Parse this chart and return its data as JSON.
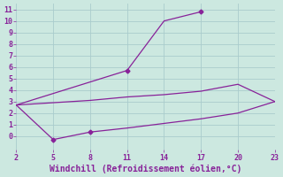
{
  "xlabel": "Windchill (Refroidissement éolien,°C)",
  "background_color": "#cce8e0",
  "grid_color": "#aacccc",
  "line_color": "#882299",
  "xlim": [
    2,
    23
  ],
  "ylim": [
    -1.2,
    11.5
  ],
  "xticks": [
    2,
    5,
    8,
    11,
    14,
    17,
    20,
    23
  ],
  "yticks": [
    0,
    1,
    2,
    3,
    4,
    5,
    6,
    7,
    8,
    9,
    10,
    11
  ],
  "line1_x": [
    2,
    11,
    14,
    17
  ],
  "line1_y": [
    2.7,
    5.7,
    10.0,
    10.8
  ],
  "line2_x": [
    2,
    5,
    8,
    11,
    14,
    17,
    20,
    23
  ],
  "line2_y": [
    2.7,
    2.9,
    3.1,
    3.4,
    3.6,
    3.9,
    4.5,
    3.0
  ],
  "line3_x": [
    2,
    5,
    8,
    11,
    14,
    17,
    20,
    23
  ],
  "line3_y": [
    2.7,
    -0.3,
    0.35,
    0.7,
    1.1,
    1.5,
    2.0,
    3.0
  ],
  "marker": "D",
  "markersize": 2.5,
  "linewidth": 0.9,
  "tick_fontsize": 6,
  "xlabel_fontsize": 7,
  "line1_markers": [
    11,
    17
  ],
  "line3_markers": [
    5,
    8
  ]
}
